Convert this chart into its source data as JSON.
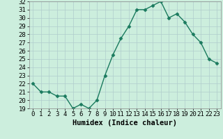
{
  "x": [
    0,
    1,
    2,
    3,
    4,
    5,
    6,
    7,
    8,
    9,
    10,
    11,
    12,
    13,
    14,
    15,
    16,
    17,
    18,
    19,
    20,
    21,
    22,
    23
  ],
  "y": [
    22.0,
    21.0,
    21.0,
    20.5,
    20.5,
    19.0,
    19.5,
    19.0,
    20.0,
    23.0,
    25.5,
    27.5,
    29.0,
    31.0,
    31.0,
    31.5,
    32.0,
    30.0,
    30.5,
    29.5,
    28.0,
    27.0,
    25.0,
    24.5
  ],
  "xlabel": "Humidex (Indice chaleur)",
  "line_color": "#1a7a5e",
  "marker": "D",
  "marker_size": 2.5,
  "line_width": 1.0,
  "bg_color": "#cceedd",
  "grid_color": "#b0cccc",
  "tick_label_fontsize": 6.5,
  "xlabel_fontsize": 7.5,
  "ylim": [
    19,
    32
  ],
  "yticks": [
    19,
    20,
    21,
    22,
    23,
    24,
    25,
    26,
    27,
    28,
    29,
    30,
    31,
    32
  ],
  "xticks": [
    0,
    1,
    2,
    3,
    4,
    5,
    6,
    7,
    8,
    9,
    10,
    11,
    12,
    13,
    14,
    15,
    16,
    17,
    18,
    19,
    20,
    21,
    22,
    23
  ]
}
